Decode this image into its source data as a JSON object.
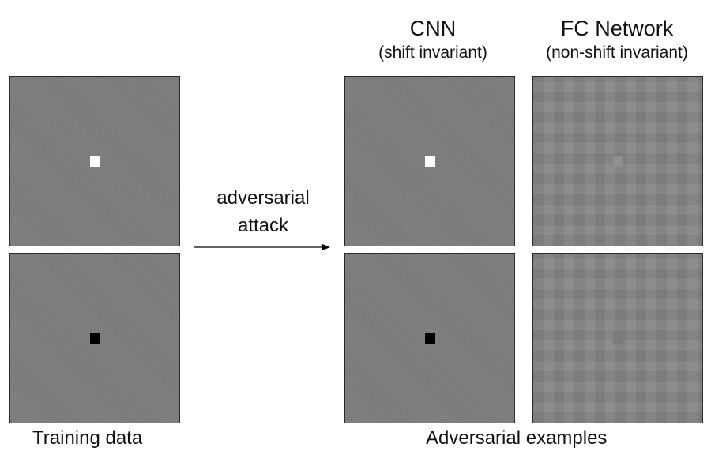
{
  "columns": {
    "cnn": {
      "title": "CNN",
      "subtitle": "(shift invariant)"
    },
    "fc": {
      "title": "FC Network",
      "subtitle": "(non-shift invariant)"
    }
  },
  "arrow": {
    "line1": "adversarial",
    "line2": "attack"
  },
  "captions": {
    "training": "Training data",
    "adversarial": "Adversarial examples"
  },
  "colors": {
    "panel_gray": "#7d7d7d",
    "white_pixel": "#ffffff",
    "black_pixel": "#000000"
  }
}
